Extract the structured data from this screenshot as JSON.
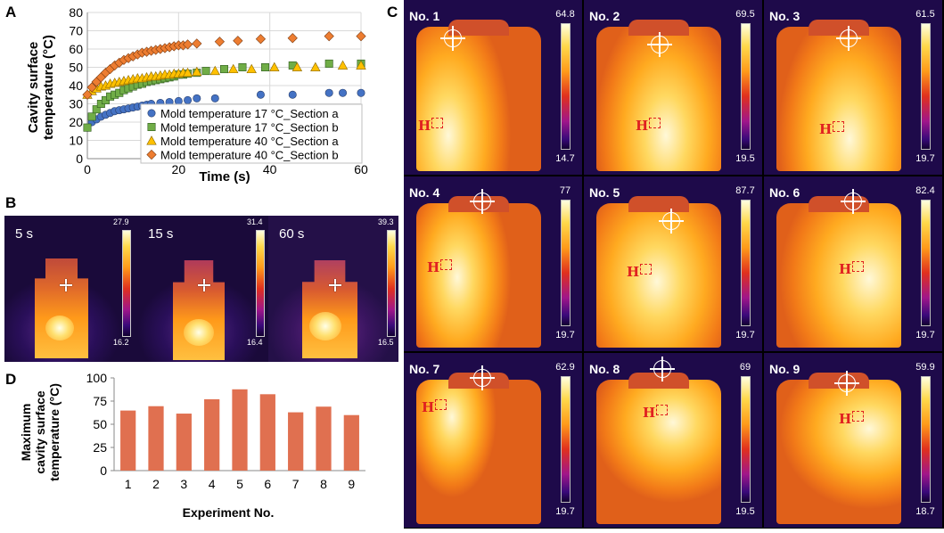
{
  "panels": {
    "a": "A",
    "b": "B",
    "c": "C",
    "d": "D"
  },
  "chart_data": [
    {
      "type": "scatter",
      "panel": "A",
      "xlabel": "Time (s)",
      "ylabel_line1": "Cavity surface",
      "ylabel_line2": "temperature (°C)",
      "xlim": [
        0,
        60
      ],
      "ylim": [
        0,
        80
      ],
      "xticks": [
        0,
        20,
        40,
        60
      ],
      "yticks": [
        0,
        10,
        20,
        30,
        40,
        50,
        60,
        70,
        80
      ],
      "grid": true,
      "legend_position": "bottom-right",
      "series": [
        {
          "name": "Mold temperature 17 °C_Section a",
          "marker": "circle",
          "color": "#4472C4",
          "x": [
            0,
            1,
            2,
            3,
            4,
            5,
            6,
            7,
            8,
            9,
            10,
            11,
            12,
            13,
            14,
            16,
            18,
            20,
            22,
            24,
            28,
            38,
            45,
            53,
            56,
            60
          ],
          "y": [
            17,
            20,
            21.5,
            23,
            24,
            25,
            26,
            26.5,
            27,
            27.5,
            28,
            28.5,
            29,
            29.5,
            30,
            30.5,
            31,
            31.5,
            32,
            33,
            33,
            35,
            35,
            36,
            36,
            36
          ]
        },
        {
          "name": "Mold temperature 17 °C_Section b",
          "marker": "square",
          "color": "#70AD47",
          "x": [
            0,
            1,
            2,
            3,
            4,
            5,
            6,
            7,
            8,
            9,
            10,
            11,
            12,
            13,
            14,
            15,
            16,
            17,
            18,
            19,
            20,
            21,
            22,
            24,
            26,
            30,
            34,
            39,
            45,
            53,
            60
          ],
          "y": [
            17,
            23,
            27,
            30,
            32,
            34,
            35,
            36,
            37.5,
            38.5,
            39.5,
            40.5,
            41,
            42,
            42.5,
            43,
            43.5,
            44,
            44.5,
            45,
            46,
            46,
            46.5,
            47,
            48,
            49,
            50,
            50,
            51,
            52,
            52
          ]
        },
        {
          "name": "Mold temperature 40 °C_Section a",
          "marker": "triangle",
          "color": "#FFC000",
          "x": [
            0,
            1,
            2,
            3,
            4,
            5,
            6,
            7,
            8,
            9,
            10,
            11,
            12,
            13,
            14,
            15,
            16,
            17,
            18,
            19,
            20,
            21,
            22,
            24,
            28,
            32,
            36,
            41,
            46,
            50,
            56,
            60
          ],
          "y": [
            35,
            37,
            38.5,
            39.5,
            40,
            41,
            41.5,
            42,
            42.5,
            43,
            43.5,
            44,
            44,
            44.5,
            45,
            45,
            45.5,
            46,
            46,
            46.5,
            46.5,
            47,
            47,
            47.5,
            48,
            49,
            49,
            50,
            50,
            50,
            51,
            51
          ]
        },
        {
          "name": "Mold temperature 40 °C_Section b",
          "marker": "diamond",
          "color": "#ED7D31",
          "x": [
            0,
            1,
            2,
            3,
            4,
            5,
            6,
            7,
            8,
            9,
            10,
            11,
            12,
            13,
            14,
            15,
            16,
            17,
            18,
            19,
            20,
            21,
            22,
            24,
            29,
            33,
            38,
            45,
            53,
            60
          ],
          "y": [
            35,
            39,
            42,
            44.5,
            47,
            49,
            51,
            52.5,
            54,
            55,
            56,
            57,
            58,
            58.5,
            59,
            59.5,
            60,
            60.5,
            61,
            61.5,
            62,
            62,
            62.5,
            63,
            64,
            64.5,
            65.5,
            66,
            67,
            67
          ]
        }
      ]
    },
    {
      "type": "bar",
      "panel": "D",
      "xlabel": "Experiment No.",
      "ylabel_line1": "Maximum",
      "ylabel_line2": "cavity surface",
      "ylabel_line3": "temperature (°C)",
      "categories": [
        "1",
        "2",
        "3",
        "4",
        "5",
        "6",
        "7",
        "8",
        "9"
      ],
      "values": [
        64.8,
        69.5,
        61.5,
        77,
        87.7,
        82.4,
        62.9,
        69,
        59.9
      ],
      "ylim": [
        0,
        100
      ],
      "yticks": [
        0,
        25,
        50,
        75,
        100
      ],
      "color": "#E07050"
    }
  ],
  "thermal_b": [
    {
      "time": "5 s",
      "max": "27.9",
      "min": "16.2"
    },
    {
      "time": "15 s",
      "max": "31.4",
      "min": "16.4"
    },
    {
      "time": "60 s",
      "max": "39.3",
      "min": "16.5"
    }
  ],
  "thermal_c": [
    {
      "label": "No. 1",
      "max": "64.8",
      "min": "14.7",
      "h": "H"
    },
    {
      "label": "No. 2",
      "max": "69.5",
      "min": "19.5",
      "h": "H"
    },
    {
      "label": "No. 3",
      "max": "61.5",
      "min": "19.7",
      "h": "H"
    },
    {
      "label": "No. 4",
      "max": "77",
      "min": "19.7",
      "h": "H"
    },
    {
      "label": "No. 5",
      "max": "87.7",
      "min": "19.7",
      "h": "H"
    },
    {
      "label": "No. 6",
      "max": "82.4",
      "min": "19.7",
      "h": "H"
    },
    {
      "label": "No. 7",
      "max": "62.9",
      "min": "19.7",
      "h": "H"
    },
    {
      "label": "No. 8",
      "max": "69",
      "min": "19.5",
      "h": "H"
    },
    {
      "label": "No. 9",
      "max": "59.9",
      "min": "18.7",
      "h": "H"
    }
  ]
}
